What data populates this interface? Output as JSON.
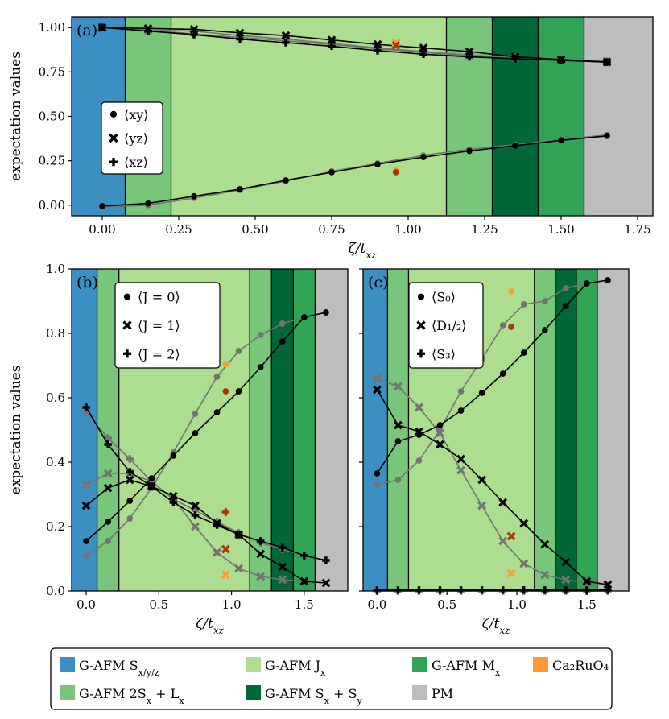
{
  "figure": {
    "colors": {
      "sxyz": "#3b8fc2",
      "twosx": "#78c679",
      "jx": "#addd8e",
      "sxsy": "#006837",
      "mx": "#31a354",
      "pm": "#bdbdbd",
      "ca2ruo4": "#fd9a32",
      "exp_dark": "#a63603",
      "black": "#000000",
      "gray": "#737373"
    }
  },
  "legend": {
    "entries": [
      {
        "key": "sxyz",
        "label": "G-AFM S_x/y/z"
      },
      {
        "key": "jx",
        "label": "G-AFM J_x"
      },
      {
        "key": "mx",
        "label": "G-AFM M_x"
      },
      {
        "key": "ca2ruo4",
        "label": "Ca₂RuO₄"
      },
      {
        "key": "twosx",
        "label": "G-AFM 2S_x + L_x"
      },
      {
        "key": "sxsy",
        "label": "G-AFM S_x + S_y"
      },
      {
        "key": "pm",
        "label": "PM"
      }
    ]
  },
  "chart_data": [
    {
      "type": "line",
      "panel": "(a)",
      "xlabel": "ζ/t_xz",
      "ylabel": "expectation values",
      "xlim": [
        -0.1,
        1.8
      ],
      "ylim": [
        -0.06,
        1.06
      ],
      "xticks": [
        0.0,
        0.25,
        0.5,
        0.75,
        1.0,
        1.25,
        1.5,
        1.75
      ],
      "xtick_labels": [
        "0.00",
        "0.25",
        "0.50",
        "0.75",
        "1.00",
        "1.25",
        "1.50",
        "1.75"
      ],
      "yticks": [
        0.0,
        0.25,
        0.5,
        0.75,
        1.0
      ],
      "ytick_labels": [
        "0.00",
        "0.25",
        "0.50",
        "0.75",
        "1.00"
      ],
      "phases": [
        {
          "key": "sxyz",
          "from": -0.1,
          "to": 0.075
        },
        {
          "key": "twosx",
          "from": 0.075,
          "to": 0.225
        },
        {
          "key": "jx",
          "from": 0.225,
          "to": 1.125
        },
        {
          "key": "twosx",
          "from": 1.125,
          "to": 1.275
        },
        {
          "key": "sxsy",
          "from": 1.275,
          "to": 1.425
        },
        {
          "key": "mx",
          "from": 1.425,
          "to": 1.575
        },
        {
          "key": "pm",
          "from": 1.575,
          "to": 1.8
        }
      ],
      "legend": {
        "position": "center-left",
        "entries": [
          {
            "marker": "dot",
            "label": "⟨xy⟩"
          },
          {
            "marker": "x",
            "label": "⟨yz⟩"
          },
          {
            "marker": "plus",
            "label": "⟨xz⟩"
          }
        ]
      },
      "x": [
        0.0,
        0.15,
        0.3,
        0.45,
        0.6,
        0.75,
        0.9,
        1.05,
        1.2,
        1.35,
        1.5,
        1.65
      ],
      "series": [
        {
          "name": "xy gray",
          "color": "gray",
          "marker": "dot",
          "values": [
            -0.01,
            0.0,
            0.04,
            0.085,
            0.135,
            0.19,
            0.235,
            0.28,
            0.315,
            0.34,
            0.37,
            0.395
          ]
        },
        {
          "name": "yz gray",
          "color": "gray",
          "marker": "x",
          "values": [
            1.0,
            0.985,
            0.98,
            0.955,
            0.935,
            0.91,
            0.885,
            0.865,
            0.845,
            0.83,
            0.82,
            0.81
          ]
        },
        {
          "name": "xz gray",
          "color": "gray",
          "marker": "plus",
          "values": [
            1.0,
            0.985,
            0.965,
            0.945,
            0.925,
            0.905,
            0.88,
            0.86,
            0.84,
            0.83,
            0.82,
            0.81
          ]
        },
        {
          "name": "xy",
          "color": "black",
          "marker": "dot",
          "values": [
            -0.005,
            0.01,
            0.05,
            0.09,
            0.14,
            0.185,
            0.23,
            0.27,
            0.305,
            0.335,
            0.365,
            0.39
          ]
        },
        {
          "name": "yz",
          "color": "black",
          "marker": "x",
          "values": [
            1.0,
            0.995,
            0.99,
            0.97,
            0.955,
            0.93,
            0.905,
            0.885,
            0.865,
            0.835,
            0.82,
            0.805
          ]
        },
        {
          "name": "xz",
          "color": "black",
          "marker": "plus",
          "values": [
            1.0,
            0.98,
            0.96,
            0.935,
            0.915,
            0.895,
            0.87,
            0.85,
            0.835,
            0.825,
            0.815,
            0.805
          ]
        }
      ],
      "experiment": [
        {
          "x": 0.96,
          "y": 0.195,
          "marker": "dot",
          "color": "ca2ruo4"
        },
        {
          "x": 0.96,
          "y": 0.185,
          "marker": "dot",
          "color": "exp_dark"
        },
        {
          "x": 0.96,
          "y": 0.915,
          "marker": "x",
          "color": "ca2ruo4"
        },
        {
          "x": 0.96,
          "y": 0.9,
          "marker": "x",
          "color": "exp_dark"
        }
      ]
    },
    {
      "type": "line",
      "panel": "(b)",
      "xlabel": "ζ/t_xz",
      "ylabel": "expectation values",
      "xlim": [
        -0.1,
        1.8
      ],
      "ylim": [
        0.0,
        1.0
      ],
      "xticks": [
        0.0,
        0.5,
        1.0,
        1.5
      ],
      "xtick_labels": [
        "0.0",
        "0.5",
        "1.0",
        "1.5"
      ],
      "yticks": [
        0.0,
        0.2,
        0.4,
        0.6,
        0.8,
        1.0
      ],
      "ytick_labels": [
        "0.0",
        "0.2",
        "0.4",
        "0.6",
        "0.8",
        "1.0"
      ],
      "phases": [
        {
          "key": "sxyz",
          "from": -0.1,
          "to": 0.075
        },
        {
          "key": "twosx",
          "from": 0.075,
          "to": 0.225
        },
        {
          "key": "jx",
          "from": 0.225,
          "to": 1.125
        },
        {
          "key": "twosx",
          "from": 1.125,
          "to": 1.275
        },
        {
          "key": "sxsy",
          "from": 1.275,
          "to": 1.425
        },
        {
          "key": "mx",
          "from": 1.425,
          "to": 1.575
        },
        {
          "key": "pm",
          "from": 1.575,
          "to": 1.8
        }
      ],
      "legend": {
        "position": "top-left",
        "entries": [
          {
            "marker": "dot",
            "label": "⟨J = 0⟩"
          },
          {
            "marker": "x",
            "label": "⟨J = 1⟩"
          },
          {
            "marker": "plus",
            "label": "⟨J = 2⟩"
          }
        ]
      },
      "x": [
        0.0,
        0.15,
        0.3,
        0.45,
        0.6,
        0.75,
        0.9,
        1.05,
        1.2,
        1.35,
        1.5,
        1.65
      ],
      "series": [
        {
          "name": "J0 gray",
          "color": "gray",
          "marker": "dot",
          "values": [
            0.11,
            0.155,
            0.225,
            0.32,
            0.43,
            0.55,
            0.665,
            0.745,
            0.795,
            0.83,
            0.85,
            0.865
          ]
        },
        {
          "name": "J1 gray",
          "color": "gray",
          "marker": "x",
          "values": [
            0.33,
            0.365,
            0.365,
            0.34,
            0.285,
            0.2,
            0.12,
            0.07,
            0.045,
            0.035,
            0.03,
            0.025
          ]
        },
        {
          "name": "J2 gray",
          "color": "gray",
          "marker": "plus",
          "values": [
            0.555,
            0.475,
            0.41,
            0.34,
            0.285,
            0.25,
            0.215,
            0.18,
            0.15,
            0.13,
            0.11,
            0.095
          ]
        },
        {
          "name": "J0",
          "color": "black",
          "marker": "dot",
          "values": [
            0.155,
            0.215,
            0.28,
            0.35,
            0.42,
            0.49,
            0.555,
            0.62,
            0.695,
            0.775,
            0.85,
            0.865
          ]
        },
        {
          "name": "J1",
          "color": "black",
          "marker": "x",
          "values": [
            0.265,
            0.32,
            0.345,
            0.325,
            0.295,
            0.265,
            0.21,
            0.175,
            0.115,
            0.075,
            0.03,
            0.025
          ]
        },
        {
          "name": "J2",
          "color": "black",
          "marker": "plus",
          "values": [
            0.57,
            0.455,
            0.37,
            0.325,
            0.275,
            0.235,
            0.205,
            0.175,
            0.155,
            0.135,
            0.11,
            0.095
          ]
        }
      ],
      "experiment": [
        {
          "x": 0.96,
          "y": 0.705,
          "marker": "dot",
          "color": "ca2ruo4"
        },
        {
          "x": 0.96,
          "y": 0.62,
          "marker": "dot",
          "color": "exp_dark"
        },
        {
          "x": 0.96,
          "y": 0.245,
          "marker": "plus",
          "color": "exp_dark"
        },
        {
          "x": 0.96,
          "y": 0.13,
          "marker": "x",
          "color": "exp_dark"
        },
        {
          "x": 0.96,
          "y": 0.05,
          "marker": "x",
          "color": "ca2ruo4"
        }
      ]
    },
    {
      "type": "line",
      "panel": "(c)",
      "xlabel": "ζ/t_xz",
      "ylabel": "",
      "xlim": [
        -0.1,
        1.8
      ],
      "ylim": [
        0.0,
        1.0
      ],
      "xticks": [
        0.0,
        0.5,
        1.0,
        1.5
      ],
      "xtick_labels": [
        "0.0",
        "0.5",
        "1.0",
        "1.5"
      ],
      "yticks": [
        0.0,
        0.2,
        0.4,
        0.6,
        0.8,
        1.0
      ],
      "ytick_labels": [],
      "phases": [
        {
          "key": "sxyz",
          "from": -0.1,
          "to": 0.075
        },
        {
          "key": "twosx",
          "from": 0.075,
          "to": 0.225
        },
        {
          "key": "jx",
          "from": 0.225,
          "to": 1.125
        },
        {
          "key": "twosx",
          "from": 1.125,
          "to": 1.275
        },
        {
          "key": "sxsy",
          "from": 1.275,
          "to": 1.425
        },
        {
          "key": "mx",
          "from": 1.425,
          "to": 1.575
        },
        {
          "key": "pm",
          "from": 1.575,
          "to": 1.8
        }
      ],
      "legend": {
        "position": "top-left",
        "entries": [
          {
            "marker": "dot",
            "label": "⟨S₀⟩"
          },
          {
            "marker": "x",
            "label": "⟨D₁/₂⟩"
          },
          {
            "marker": "plus",
            "label": "⟨S₃⟩"
          }
        ]
      },
      "x": [
        0.0,
        0.15,
        0.3,
        0.45,
        0.6,
        0.75,
        0.9,
        1.05,
        1.2,
        1.35,
        1.5,
        1.65
      ],
      "series": [
        {
          "name": "S0 gray",
          "color": "gray",
          "marker": "dot",
          "values": [
            0.33,
            0.345,
            0.405,
            0.5,
            0.62,
            0.72,
            0.825,
            0.89,
            0.9,
            0.94,
            0.955,
            0.965
          ]
        },
        {
          "name": "D gray",
          "color": "gray",
          "marker": "x",
          "values": [
            0.66,
            0.635,
            0.57,
            0.49,
            0.375,
            0.265,
            0.155,
            0.085,
            0.05,
            0.035,
            0.025,
            0.02
          ]
        },
        {
          "name": "S3 gray",
          "color": "gray",
          "marker": "plus",
          "values": [
            0.0,
            0.0,
            0.0,
            0.0,
            0.0,
            0.0,
            0.0,
            0.0,
            0.0,
            0.0,
            0.0,
            0.0
          ]
        },
        {
          "name": "S0",
          "color": "black",
          "marker": "dot",
          "values": [
            0.365,
            0.465,
            0.485,
            0.515,
            0.56,
            0.615,
            0.675,
            0.74,
            0.81,
            0.885,
            0.955,
            0.965
          ]
        },
        {
          "name": "D",
          "color": "black",
          "marker": "x",
          "values": [
            0.625,
            0.515,
            0.495,
            0.455,
            0.41,
            0.345,
            0.275,
            0.21,
            0.145,
            0.09,
            0.03,
            0.02
          ]
        },
        {
          "name": "S3",
          "color": "black",
          "marker": "plus",
          "values": [
            0.003,
            0.003,
            0.003,
            0.003,
            0.003,
            0.003,
            0.003,
            0.003,
            0.003,
            0.003,
            0.003,
            0.003
          ]
        }
      ],
      "experiment": [
        {
          "x": 0.96,
          "y": 0.93,
          "marker": "dot",
          "color": "ca2ruo4"
        },
        {
          "x": 0.96,
          "y": 0.82,
          "marker": "dot",
          "color": "exp_dark"
        },
        {
          "x": 0.96,
          "y": 0.17,
          "marker": "x",
          "color": "exp_dark"
        },
        {
          "x": 0.96,
          "y": 0.055,
          "marker": "x",
          "color": "ca2ruo4"
        }
      ]
    }
  ]
}
